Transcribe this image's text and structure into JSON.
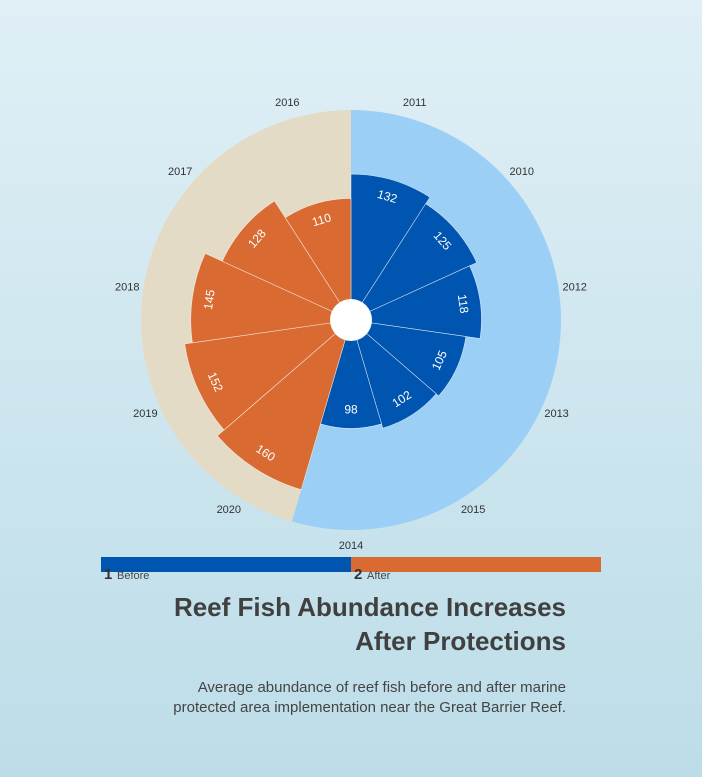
{
  "chart_data": {
    "type": "polar-bar",
    "title_line1": "Reef Fish Abundance Increases",
    "title_line2": "After Protections",
    "subtitle_line1": "Average abundance of reef fish before and after marine",
    "subtitle_line2": "protected area implementation near the Great Barrier Reef.",
    "rmax": 190,
    "legend": [
      {
        "number": "1",
        "label": "Before",
        "color": "#0055b0",
        "bg_color": "#9ccff5"
      },
      {
        "number": "2",
        "label": "After",
        "color": "#d96a31",
        "bg_color": "#e4dbc6"
      }
    ],
    "series": [
      {
        "name": "Before",
        "categories": [
          "2011",
          "2010",
          "2012",
          "2013",
          "2015",
          "2014"
        ],
        "values": [
          132,
          125,
          118,
          105,
          102,
          98
        ]
      },
      {
        "name": "After",
        "categories": [
          "2020",
          "2019",
          "2018",
          "2017",
          "2016"
        ],
        "values": [
          160,
          152,
          145,
          128,
          110
        ]
      }
    ]
  }
}
